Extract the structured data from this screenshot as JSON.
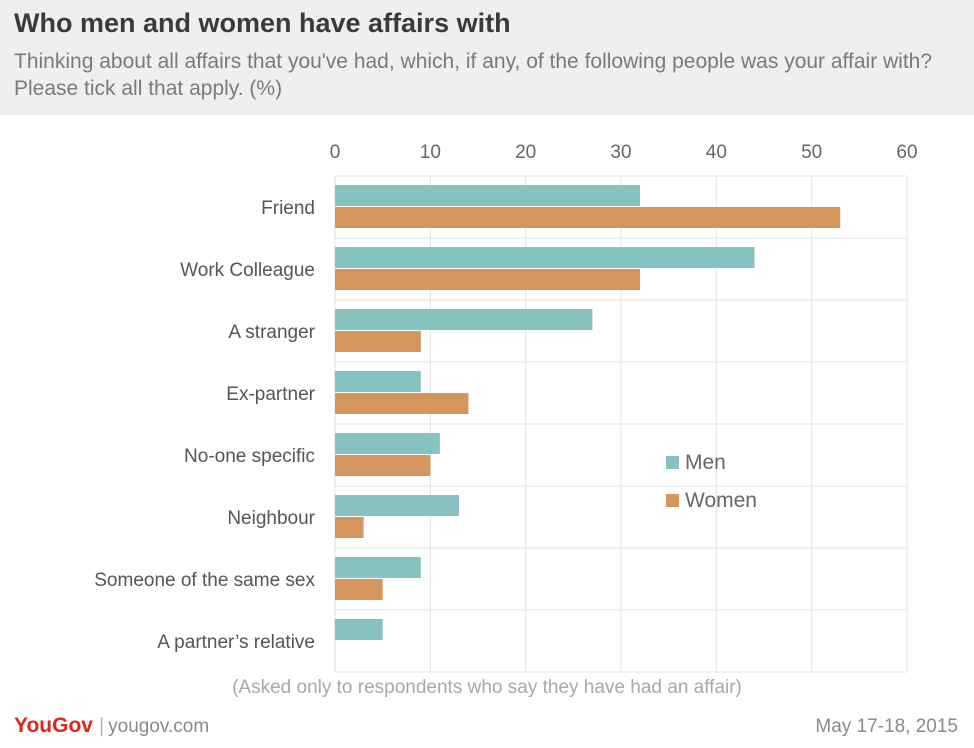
{
  "title": "Who men and women have affairs with",
  "subtitle": "Thinking about all affairs that you've had, which, if any, of the following people was your affair with? Please tick all that apply. (%)",
  "note": "(Asked only to respondents who say they have had an affair)",
  "footer": {
    "logo": "YouGov",
    "site": "yougov.com",
    "date": "May 17-18, 2015"
  },
  "colors": {
    "men": "#86c2c0",
    "women": "#d4965d",
    "grid": "#e3e3e3"
  },
  "chart_data": {
    "type": "bar",
    "orientation": "horizontal",
    "categories": [
      "Friend",
      "Work Colleague",
      "A stranger",
      "Ex-partner",
      "No-one specific",
      "Neighbour",
      "Someone of the same sex",
      "A partner’s relative"
    ],
    "series": [
      {
        "name": "Men",
        "values": [
          32,
          44,
          27,
          9,
          11,
          13,
          9,
          5
        ]
      },
      {
        "name": "Women",
        "values": [
          53,
          32,
          9,
          14,
          10,
          3,
          5,
          0
        ]
      }
    ],
    "xlim": [
      0,
      60
    ],
    "xticks": [
      0,
      10,
      20,
      30,
      40,
      50,
      60
    ],
    "grid": true,
    "legend": "center-right"
  }
}
